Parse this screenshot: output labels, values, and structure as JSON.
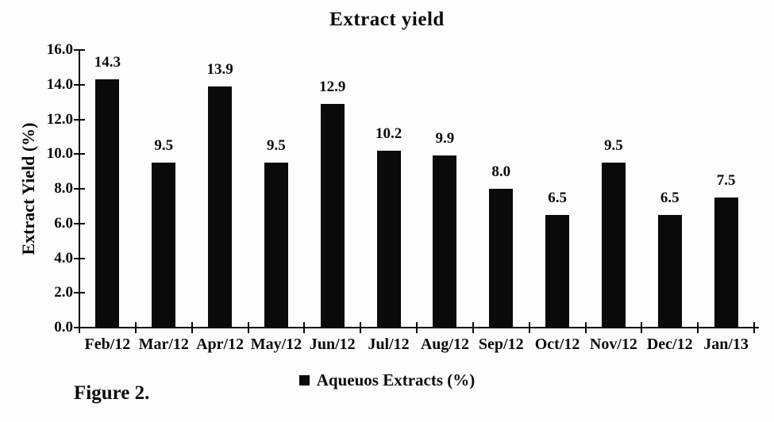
{
  "figure_caption": "Figure 2.",
  "legend": {
    "label": "Aqueuos Extracts (%)"
  },
  "colors": {
    "bar": "#0a0a0a",
    "axis": "#0a0a0a",
    "text": "#0a0a0a",
    "background": "#fdfdfd"
  },
  "chart_data": {
    "type": "bar",
    "title": "Extract yield",
    "categories": [
      "Feb/12",
      "Mar/12",
      "Apr/12",
      "May/12",
      "Jun/12",
      "Jul/12",
      "Aug/12",
      "Sep/12",
      "Oct/12",
      "Nov/12",
      "Dec/12",
      "Jan/13"
    ],
    "values": [
      14.3,
      9.5,
      13.9,
      9.5,
      12.9,
      10.2,
      9.9,
      8.0,
      6.5,
      9.5,
      6.5,
      7.5
    ],
    "data_labels": [
      "14.3",
      "9.5",
      "13.9",
      "9.5",
      "12.9",
      "10.2",
      "9.9",
      "8.0",
      "6.5",
      "9.5",
      "6.5",
      "7.5"
    ],
    "series_name": "Aqueuos Extracts (%)",
    "xlabel": "",
    "ylabel": "Extract Yield (%)",
    "ylim": [
      0,
      16
    ],
    "ytick_step": 2,
    "ytick_labels_top_to_bottom": [
      "16.0",
      "14.0",
      "12.0",
      "10.0",
      "8.0",
      "6.0",
      "4.0",
      "2.0",
      "0.0"
    ],
    "grid": false,
    "legend_position": "bottom",
    "bar_color": "#0a0a0a"
  }
}
